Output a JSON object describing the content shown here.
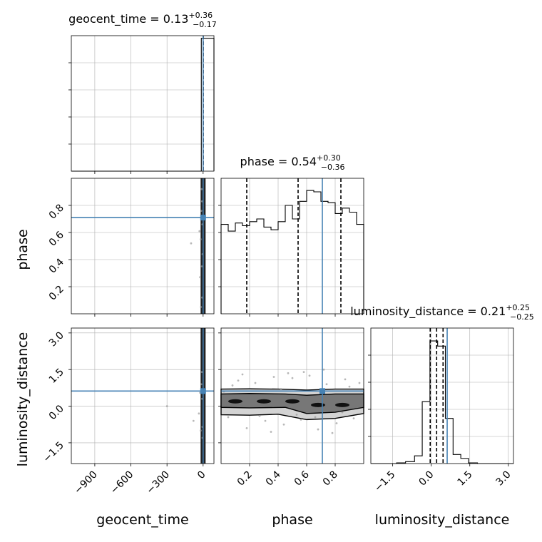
{
  "colors": {
    "truth": "#4682b4",
    "hist": "#000000",
    "grid": "#b0b0b0",
    "points": "#9a9a9a"
  },
  "parameters": [
    {
      "name": "geocent_time",
      "title": "geocent_time = 0.13",
      "median": 0.13,
      "plus": "+0.36",
      "minus": "−0.17",
      "quantiles": [
        -0.04,
        0.13,
        0.49
      ],
      "truth": 0.0,
      "range": [
        -1095,
        90
      ],
      "ticks": [
        -900,
        -600,
        -300,
        0
      ],
      "tick_labels": [
        "−900",
        "−600",
        "−300",
        "0"
      ]
    },
    {
      "name": "phase",
      "title": "phase = 0.54",
      "median": 0.54,
      "plus": "+0.30",
      "minus": "−0.36",
      "quantiles": [
        0.18,
        0.54,
        0.84
      ],
      "truth": 0.71,
      "range": [
        0.0,
        1.0
      ],
      "ticks": [
        0.2,
        0.4,
        0.6,
        0.8
      ],
      "tick_labels": [
        "0.2",
        "0.4",
        "0.6",
        "0.8"
      ]
    },
    {
      "name": "luminosity_distance",
      "title": "luminosity_distance = 0.21",
      "median": 0.21,
      "plus": "+0.25",
      "minus": "−0.25",
      "quantiles": [
        -0.04,
        0.21,
        0.46
      ],
      "truth": 0.62,
      "range": [
        -2.35,
        3.2
      ],
      "ticks": [
        -1.5,
        0.0,
        1.5,
        3.0
      ],
      "tick_labels": [
        "−1.5",
        "0.0",
        "1.5",
        "3.0"
      ]
    }
  ],
  "chart_data": {
    "type": "corner",
    "grid": true,
    "histograms": [
      {
        "parameter": "geocent_time",
        "bin_edges": [
          -1095,
          -1035,
          -975,
          -915,
          -855,
          -795,
          -735,
          -675,
          -615,
          -555,
          -495,
          -435,
          -375,
          -315,
          -255,
          -195,
          -135,
          -75,
          -15,
          40,
          90
        ],
        "counts": [
          0,
          0,
          0,
          0,
          0,
          0,
          0,
          0,
          0,
          0,
          0,
          0,
          0,
          0,
          0,
          0,
          0,
          0,
          1.0,
          1.0
        ],
        "ymax": 1.02
      },
      {
        "parameter": "phase",
        "bin_edges": [
          0.0,
          0.05,
          0.1,
          0.15,
          0.2,
          0.25,
          0.3,
          0.35,
          0.4,
          0.45,
          0.5,
          0.55,
          0.6,
          0.65,
          0.7,
          0.75,
          0.8,
          0.85,
          0.9,
          0.95,
          1.0
        ],
        "counts": [
          0.66,
          0.61,
          0.67,
          0.65,
          0.68,
          0.7,
          0.64,
          0.62,
          0.68,
          0.8,
          0.7,
          0.83,
          0.91,
          0.9,
          0.83,
          0.82,
          0.74,
          0.78,
          0.75,
          0.66
        ],
        "ymax": 1.0
      },
      {
        "parameter": "luminosity_distance",
        "bin_edges": [
          -2.35,
          -2.0,
          -1.65,
          -1.35,
          -1.0,
          -0.65,
          -0.35,
          -0.05,
          0.25,
          0.55,
          0.85,
          1.15,
          1.45,
          1.8,
          2.15,
          2.5,
          2.85,
          3.2
        ],
        "counts": [
          0,
          0,
          0,
          0.005,
          0.015,
          0.06,
          0.48,
          0.95,
          0.91,
          0.35,
          0.07,
          0.04,
          0.005,
          0,
          0,
          0,
          0
        ],
        "ymax": 1.05
      }
    ],
    "scatter": [
      {
        "x": "geocent_time",
        "y": "phase",
        "points": [
          [
            -100,
            0.52
          ],
          [
            -30,
            0.61
          ],
          [
            -10,
            0.35
          ],
          [
            -15,
            0.76
          ],
          [
            -8,
            0.12
          ],
          [
            -12,
            0.92
          ],
          [
            -20,
            0.55
          ],
          [
            -5,
            0.44
          ],
          [
            -25,
            0.27
          ],
          [
            -6,
            0.66
          ],
          [
            -9,
            0.83
          ],
          [
            -18,
            0.05
          ]
        ]
      },
      {
        "x": "geocent_time",
        "y": "luminosity_distance",
        "points": [
          [
            -300,
            0.0
          ],
          [
            -80,
            -0.6
          ],
          [
            -20,
            -1.0
          ],
          [
            -15,
            0.9
          ],
          [
            -10,
            1.4
          ],
          [
            -35,
            -0.3
          ],
          [
            -6,
            -0.85
          ],
          [
            -25,
            0.55
          ],
          [
            -8,
            0.3
          ],
          [
            -5,
            -1.3
          ]
        ]
      },
      {
        "x": "phase",
        "y": "luminosity_distance",
        "points": [
          [
            0.05,
            -0.45
          ],
          [
            0.12,
            1.05
          ],
          [
            0.18,
            -0.9
          ],
          [
            0.24,
            0.95
          ],
          [
            0.31,
            -0.6
          ],
          [
            0.37,
            1.2
          ],
          [
            0.44,
            -0.75
          ],
          [
            0.5,
            1.15
          ],
          [
            0.56,
            -0.55
          ],
          [
            0.62,
            1.25
          ],
          [
            0.68,
            -0.95
          ],
          [
            0.74,
            0.9
          ],
          [
            0.81,
            -0.7
          ],
          [
            0.87,
            1.1
          ],
          [
            0.93,
            -0.5
          ],
          [
            0.08,
            0.85
          ],
          [
            0.27,
            -0.4
          ],
          [
            0.47,
            1.35
          ],
          [
            0.66,
            -0.45
          ],
          [
            0.9,
            0.8
          ],
          [
            0.15,
            1.3
          ],
          [
            0.35,
            -1.05
          ],
          [
            0.58,
            1.4
          ],
          [
            0.78,
            -1.1
          ],
          [
            0.97,
            0.95
          ],
          [
            0.02,
            0.6
          ],
          [
            0.42,
            0.7
          ],
          [
            0.72,
            1.5
          ],
          [
            0.53,
            -0.35
          ],
          [
            0.85,
            -0.25
          ]
        ]
      }
    ],
    "contours": {
      "x": "phase",
      "y": "luminosity_distance",
      "outer_upper": [
        [
          0,
          0.7
        ],
        [
          0.2,
          0.71
        ],
        [
          0.4,
          0.7
        ],
        [
          0.6,
          0.66
        ],
        [
          0.8,
          0.7
        ],
        [
          1.0,
          0.7
        ]
      ],
      "outer_lower": [
        [
          0,
          -0.35
        ],
        [
          0.2,
          -0.37
        ],
        [
          0.4,
          -0.33
        ],
        [
          0.6,
          -0.55
        ],
        [
          0.8,
          -0.5
        ],
        [
          1.0,
          -0.3
        ]
      ],
      "inner_upper": [
        [
          0,
          0.5
        ],
        [
          0.2,
          0.52
        ],
        [
          0.45,
          0.5
        ],
        [
          0.6,
          0.45
        ],
        [
          0.8,
          0.5
        ],
        [
          1.0,
          0.5
        ]
      ],
      "inner_lower": [
        [
          0,
          -0.05
        ],
        [
          0.2,
          -0.07
        ],
        [
          0.45,
          -0.05
        ],
        [
          0.6,
          -0.3
        ],
        [
          0.8,
          -0.25
        ],
        [
          1.0,
          -0.05
        ]
      ],
      "core_blobs": [
        [
          0.1,
          0.2
        ],
        [
          0.3,
          0.2
        ],
        [
          0.5,
          0.2
        ],
        [
          0.68,
          0.05
        ],
        [
          0.85,
          0.05
        ]
      ]
    }
  }
}
